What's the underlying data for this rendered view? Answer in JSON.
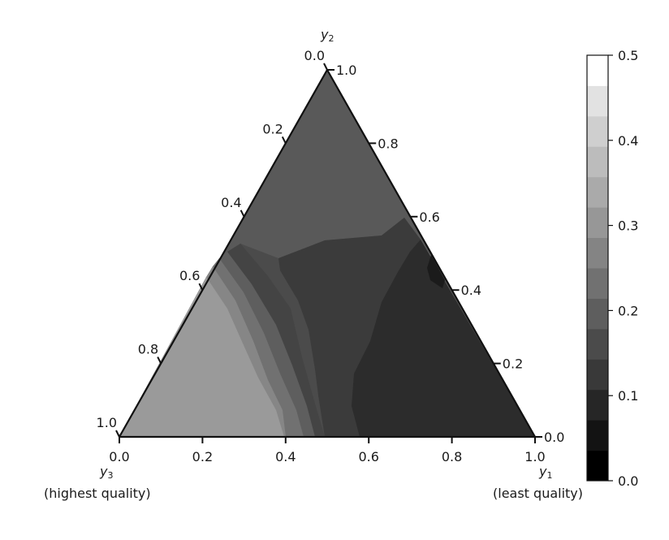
{
  "chart_data": {
    "type": "heatmap",
    "subtype": "ternary-filled-contour",
    "colormap": "gray",
    "axes": {
      "y1": {
        "label_main": "y",
        "label_sub": "1",
        "caption": "(least quality)",
        "ticks": [
          "0.0",
          "0.2",
          "0.4",
          "0.6",
          "0.8",
          "1.0"
        ]
      },
      "y2": {
        "label_main": "y",
        "label_sub": "2",
        "ticks": [
          "0.0",
          "0.2",
          "0.4",
          "0.6",
          "0.8",
          "1.0"
        ]
      },
      "y3": {
        "label_main": "y",
        "label_sub": "3",
        "caption": "(highest quality)",
        "ticks": [
          "0.0",
          "0.2",
          "0.4",
          "0.6",
          "0.8",
          "1.0"
        ]
      }
    },
    "colorbar": {
      "range": [
        0.0,
        0.5
      ],
      "levels": 14,
      "ticks": [
        {
          "value": 0.0,
          "label": "0.0"
        },
        {
          "value": 0.1,
          "label": "0.1"
        },
        {
          "value": 0.2,
          "label": "0.2"
        },
        {
          "value": 0.3,
          "label": "0.3"
        },
        {
          "value": 0.4,
          "label": "0.4"
        },
        {
          "value": 0.5,
          "label": "0.5"
        }
      ]
    },
    "regions": [
      {
        "name": "top-region",
        "value": 0.18,
        "color": "#595959"
      },
      {
        "name": "middle-band",
        "value": 0.15,
        "color": "#4b4b4b"
      },
      {
        "name": "center-region",
        "value": 0.11,
        "color": "#3b3b3b"
      },
      {
        "name": "lower-right-region",
        "value": 0.08,
        "color": "#2c2c2c"
      },
      {
        "name": "dark-spot",
        "value": 0.06,
        "color": "#1b1b1b"
      },
      {
        "name": "band-b",
        "value": 0.12,
        "color": "#444444"
      },
      {
        "name": "band-c",
        "value": 0.16,
        "color": "#5e5e5e"
      },
      {
        "name": "band-d",
        "value": 0.19,
        "color": "#717171"
      },
      {
        "name": "band-e",
        "value": 0.22,
        "color": "#868686"
      },
      {
        "name": "lower-left-region",
        "value": 0.26,
        "color": "#9a9a9a"
      }
    ]
  }
}
